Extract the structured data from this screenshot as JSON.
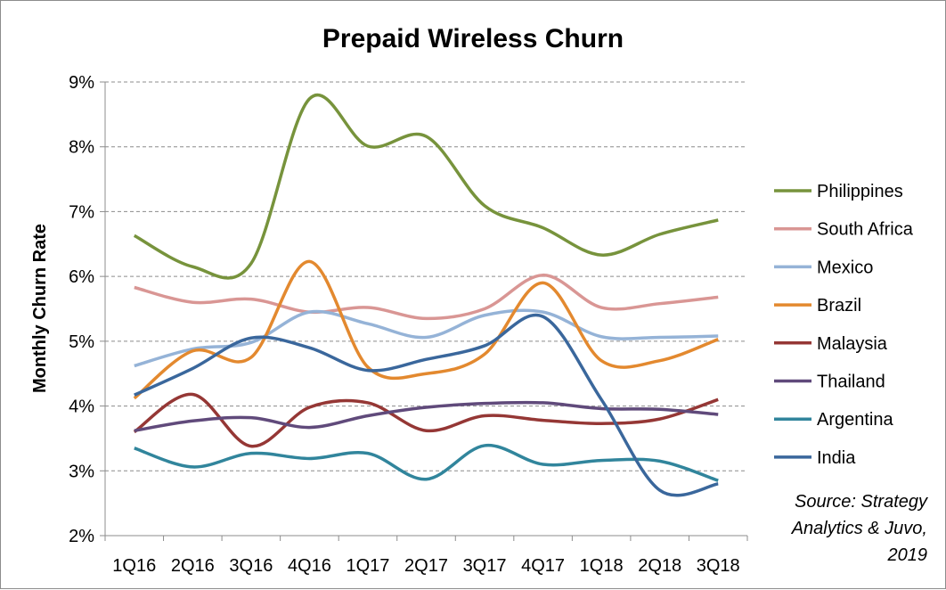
{
  "chart_data": {
    "type": "line",
    "title": "Prepaid Wireless Churn",
    "ylabel": "Monthly Churn Rate",
    "xlabel": "",
    "ylim": [
      2,
      9
    ],
    "ytick_labels": [
      "2%",
      "3%",
      "4%",
      "5%",
      "6%",
      "7%",
      "8%",
      "9%"
    ],
    "grid": true,
    "legend": "right",
    "categories": [
      "1Q16",
      "2Q16",
      "3Q16",
      "4Q16",
      "1Q17",
      "2Q17",
      "3Q17",
      "4Q17",
      "1Q18",
      "2Q18",
      "3Q18"
    ],
    "series": [
      {
        "name": "Philippines",
        "color": "#77933C",
        "values": [
          6.63,
          6.15,
          6.2,
          8.74,
          8.01,
          8.16,
          7.09,
          6.75,
          6.33,
          6.65,
          6.87
        ]
      },
      {
        "name": "South Africa",
        "color": "#D99694",
        "values": [
          5.83,
          5.6,
          5.65,
          5.45,
          5.52,
          5.35,
          5.5,
          6.02,
          5.52,
          5.58,
          5.68
        ]
      },
      {
        "name": "Mexico",
        "color": "#95B3D7",
        "values": [
          4.62,
          4.88,
          4.98,
          5.45,
          5.27,
          5.06,
          5.4,
          5.45,
          5.07,
          5.06,
          5.08
        ]
      },
      {
        "name": "Brazil",
        "color": "#E3892F",
        "values": [
          4.12,
          4.85,
          4.75,
          6.23,
          4.6,
          4.5,
          4.8,
          5.9,
          4.7,
          4.7,
          5.03
        ]
      },
      {
        "name": "Malaysia",
        "color": "#953735",
        "values": [
          3.6,
          4.18,
          3.38,
          3.98,
          4.05,
          3.62,
          3.85,
          3.78,
          3.73,
          3.8,
          4.1
        ]
      },
      {
        "name": "Thailand",
        "color": "#604A7B",
        "values": [
          3.62,
          3.77,
          3.82,
          3.67,
          3.85,
          3.98,
          4.04,
          4.05,
          3.96,
          3.95,
          3.87
        ]
      },
      {
        "name": "Argentina",
        "color": "#31859C",
        "values": [
          3.35,
          3.06,
          3.27,
          3.19,
          3.27,
          2.87,
          3.39,
          3.1,
          3.16,
          3.15,
          2.85
        ]
      },
      {
        "name": "India",
        "color": "#3A679C",
        "values": [
          4.17,
          4.58,
          5.05,
          4.9,
          4.55,
          4.72,
          4.93,
          5.38,
          4.1,
          2.7,
          2.8
        ]
      }
    ],
    "annotation": [
      "Source: Strategy",
      "Analytics & Juvo,",
      "2019"
    ]
  }
}
